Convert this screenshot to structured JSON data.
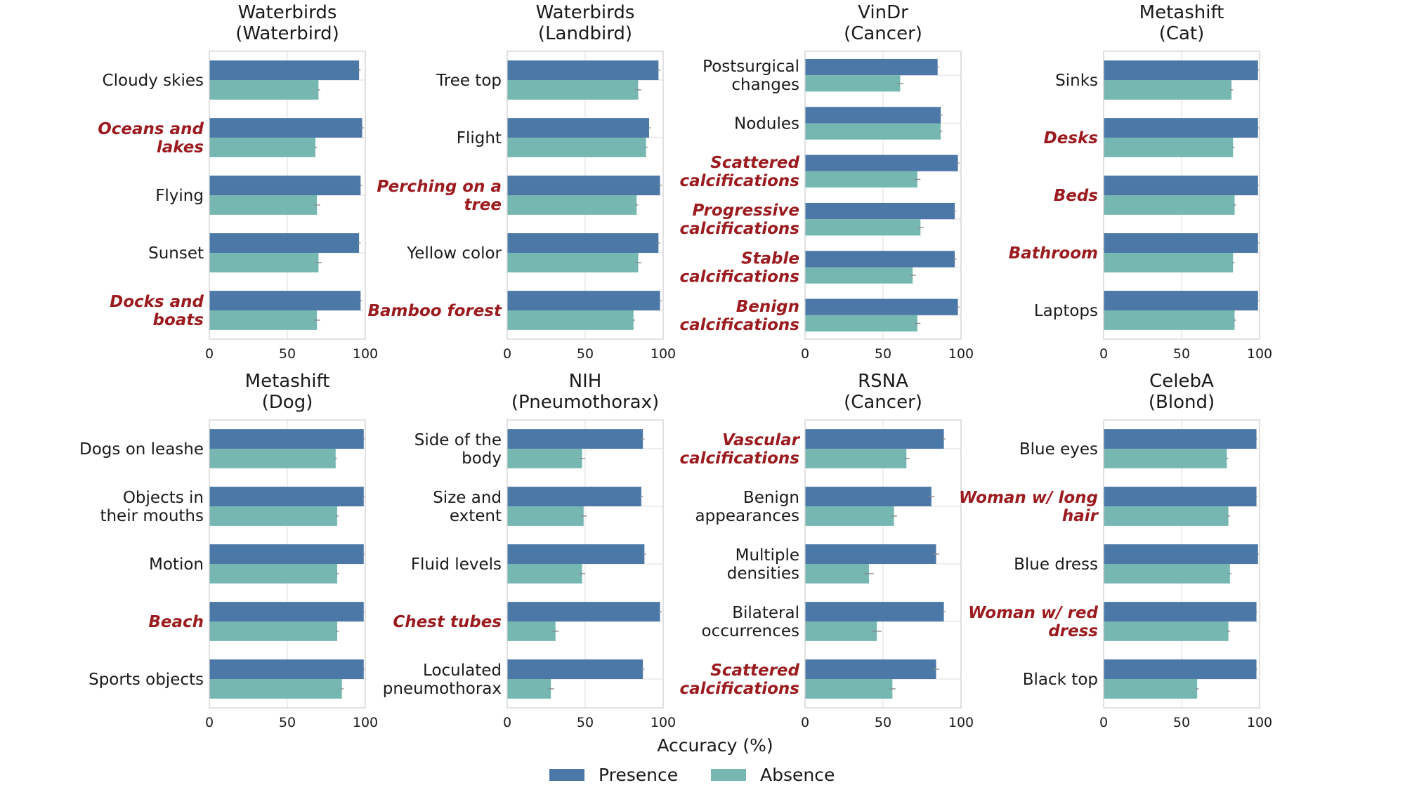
{
  "chart_data": {
    "type": "bar",
    "orientation": "horizontal",
    "xlabel": "Accuracy (%)",
    "xlim": [
      0,
      100
    ],
    "xticks": [
      "0",
      "50",
      "100"
    ],
    "series_names": [
      "Presence",
      "Absence"
    ],
    "colors": {
      "presence": "#4c78a8",
      "absence": "#76b7b2",
      "highlight_text": "#9b1b1f"
    },
    "legend": [
      {
        "name": "Presence",
        "color": "#4c78a8"
      },
      {
        "name": "Absence",
        "color": "#76b7b2"
      }
    ],
    "panels": [
      {
        "title": [
          "Waterbirds",
          "(Waterbird)"
        ],
        "categories": [
          {
            "label": [
              "Cloudy skies"
            ],
            "highlight": false,
            "presence": 96,
            "absence": 70,
            "presence_err": 1,
            "absence_err": 1
          },
          {
            "label": [
              "Oceans and",
              "lakes"
            ],
            "highlight": true,
            "presence": 98,
            "absence": 68,
            "presence_err": 1,
            "absence_err": 1
          },
          {
            "label": [
              "Flying"
            ],
            "highlight": false,
            "presence": 97,
            "absence": 69,
            "presence_err": 1,
            "absence_err": 2
          },
          {
            "label": [
              "Sunset"
            ],
            "highlight": false,
            "presence": 96,
            "absence": 70,
            "presence_err": 1,
            "absence_err": 2
          },
          {
            "label": [
              "Docks and",
              "boats"
            ],
            "highlight": true,
            "presence": 97,
            "absence": 69,
            "presence_err": 1,
            "absence_err": 2
          }
        ]
      },
      {
        "title": [
          "Waterbirds",
          "(Landbird)"
        ],
        "categories": [
          {
            "label": [
              "Tree top"
            ],
            "highlight": false,
            "presence": 97,
            "absence": 84,
            "presence_err": 1,
            "absence_err": 2
          },
          {
            "label": [
              "Flight"
            ],
            "highlight": false,
            "presence": 91,
            "absence": 89,
            "presence_err": 1,
            "absence_err": 1
          },
          {
            "label": [
              "Perching on a",
              "tree"
            ],
            "highlight": true,
            "presence": 98,
            "absence": 83,
            "presence_err": 1,
            "absence_err": 1
          },
          {
            "label": [
              "Yellow color"
            ],
            "highlight": false,
            "presence": 97,
            "absence": 84,
            "presence_err": 1,
            "absence_err": 2
          },
          {
            "label": [
              "Bamboo forest"
            ],
            "highlight": true,
            "presence": 98,
            "absence": 81,
            "presence_err": 1,
            "absence_err": 1
          }
        ]
      },
      {
        "title": [
          "VinDr",
          "(Cancer)"
        ],
        "categories": [
          {
            "label": [
              "Postsurgical",
              "changes"
            ],
            "highlight": false,
            "presence": 85,
            "absence": 61,
            "presence_err": 1,
            "absence_err": 2
          },
          {
            "label": [
              "Nodules"
            ],
            "highlight": false,
            "presence": 87,
            "absence": 87,
            "presence_err": 1,
            "absence_err": 1
          },
          {
            "label": [
              "Scattered",
              "calcifications"
            ],
            "highlight": true,
            "presence": 98,
            "absence": 72,
            "presence_err": 1,
            "absence_err": 2
          },
          {
            "label": [
              "Progressive",
              "calcifications"
            ],
            "highlight": true,
            "presence": 96,
            "absence": 74,
            "presence_err": 1,
            "absence_err": 2
          },
          {
            "label": [
              "Stable",
              "calcifications"
            ],
            "highlight": true,
            "presence": 96,
            "absence": 69,
            "presence_err": 1,
            "absence_err": 2
          },
          {
            "label": [
              "Benign",
              "calcifications"
            ],
            "highlight": true,
            "presence": 98,
            "absence": 72,
            "presence_err": 1,
            "absence_err": 2
          }
        ]
      },
      {
        "title": [
          "Metashift",
          "(Cat)"
        ],
        "categories": [
          {
            "label": [
              "Sinks"
            ],
            "highlight": false,
            "presence": 99,
            "absence": 82,
            "presence_err": 0.5,
            "absence_err": 1
          },
          {
            "label": [
              "Desks"
            ],
            "highlight": true,
            "presence": 99,
            "absence": 83,
            "presence_err": 0.5,
            "absence_err": 1
          },
          {
            "label": [
              "Beds"
            ],
            "highlight": true,
            "presence": 99,
            "absence": 84,
            "presence_err": 0.5,
            "absence_err": 1
          },
          {
            "label": [
              "Bathroom"
            ],
            "highlight": true,
            "presence": 99,
            "absence": 83,
            "presence_err": 0.5,
            "absence_err": 1
          },
          {
            "label": [
              "Laptops"
            ],
            "highlight": false,
            "presence": 99,
            "absence": 84,
            "presence_err": 0.5,
            "absence_err": 1
          }
        ]
      },
      {
        "title": [
          "Metashift",
          "(Dog)"
        ],
        "categories": [
          {
            "label": [
              "Dogs on leashe"
            ],
            "highlight": false,
            "presence": 99,
            "absence": 81,
            "presence_err": 0.5,
            "absence_err": 1
          },
          {
            "label": [
              "Objects in",
              "their mouths"
            ],
            "highlight": false,
            "presence": 99,
            "absence": 82,
            "presence_err": 0.5,
            "absence_err": 1
          },
          {
            "label": [
              "Motion"
            ],
            "highlight": false,
            "presence": 99,
            "absence": 82,
            "presence_err": 0.5,
            "absence_err": 1
          },
          {
            "label": [
              "Beach"
            ],
            "highlight": true,
            "presence": 99,
            "absence": 82,
            "presence_err": 0.5,
            "absence_err": 1
          },
          {
            "label": [
              "Sports objects"
            ],
            "highlight": false,
            "presence": 99,
            "absence": 85,
            "presence_err": 0.5,
            "absence_err": 1
          }
        ]
      },
      {
        "title": [
          "NIH",
          "(Pneumothorax)"
        ],
        "categories": [
          {
            "label": [
              "Side of the",
              "body"
            ],
            "highlight": false,
            "presence": 87,
            "absence": 48,
            "presence_err": 1,
            "absence_err": 2
          },
          {
            "label": [
              "Size and",
              "extent"
            ],
            "highlight": false,
            "presence": 86,
            "absence": 49,
            "presence_err": 1,
            "absence_err": 2
          },
          {
            "label": [
              "Fluid levels"
            ],
            "highlight": false,
            "presence": 88,
            "absence": 48,
            "presence_err": 1,
            "absence_err": 2
          },
          {
            "label": [
              "Chest tubes"
            ],
            "highlight": true,
            "presence": 98,
            "absence": 31,
            "presence_err": 1,
            "absence_err": 2
          },
          {
            "label": [
              "Loculated",
              "pneumothorax"
            ],
            "highlight": false,
            "presence": 87,
            "absence": 28,
            "presence_err": 1,
            "absence_err": 2
          }
        ]
      },
      {
        "title": [
          "RSNA",
          "(Cancer)"
        ],
        "categories": [
          {
            "label": [
              "Vascular",
              "calcifications"
            ],
            "highlight": true,
            "presence": 89,
            "absence": 65,
            "presence_err": 1,
            "absence_err": 2
          },
          {
            "label": [
              "Benign",
              "appearances"
            ],
            "highlight": false,
            "presence": 81,
            "absence": 57,
            "presence_err": 2,
            "absence_err": 2
          },
          {
            "label": [
              "Multiple",
              "densities"
            ],
            "highlight": false,
            "presence": 84,
            "absence": 41,
            "presence_err": 2,
            "absence_err": 3
          },
          {
            "label": [
              "Bilateral",
              "occurrences"
            ],
            "highlight": false,
            "presence": 89,
            "absence": 46,
            "presence_err": 1,
            "absence_err": 3
          },
          {
            "label": [
              "Scattered",
              "calcifications"
            ],
            "highlight": true,
            "presence": 84,
            "absence": 56,
            "presence_err": 2,
            "absence_err": 2
          }
        ]
      },
      {
        "title": [
          "CelebA",
          "(Blond)"
        ],
        "categories": [
          {
            "label": [
              "Blue eyes"
            ],
            "highlight": false,
            "presence": 98,
            "absence": 79,
            "presence_err": 0.5,
            "absence_err": 1
          },
          {
            "label": [
              "Woman w/ long",
              "hair"
            ],
            "highlight": true,
            "presence": 98,
            "absence": 80,
            "presence_err": 0.5,
            "absence_err": 1
          },
          {
            "label": [
              "Blue dress"
            ],
            "highlight": false,
            "presence": 99,
            "absence": 81,
            "presence_err": 0.5,
            "absence_err": 1
          },
          {
            "label": [
              "Woman w/ red",
              "dress"
            ],
            "highlight": true,
            "presence": 98,
            "absence": 80,
            "presence_err": 0.5,
            "absence_err": 1
          },
          {
            "label": [
              "Black top"
            ],
            "highlight": false,
            "presence": 98,
            "absence": 60,
            "presence_err": 0.5,
            "absence_err": 1
          }
        ]
      }
    ]
  }
}
